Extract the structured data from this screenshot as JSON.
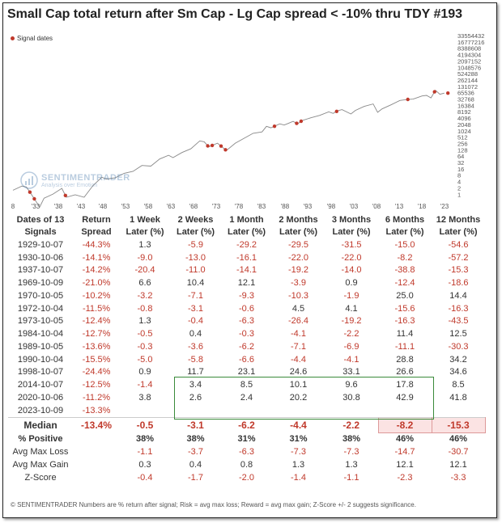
{
  "title": "Small Cap total return after Sm Cap - Lg Cap spread < -10% thru TDY #193",
  "legend": {
    "label": "Signal dates"
  },
  "logo": {
    "name": "SENTIMENTRADER",
    "sub": "Analysis over Emotion"
  },
  "chart_data": {
    "type": "line",
    "yscale": "log2",
    "y_ticks": [
      "33554432",
      "16777216",
      "8388608",
      "4194304",
      "2097152",
      "1048576",
      "524288",
      "262144",
      "131072",
      "65536",
      "32768",
      "16384",
      "8192",
      "4096",
      "2048",
      "1024",
      "512",
      "256",
      "128",
      "64",
      "32",
      "16",
      "8",
      "4",
      "2",
      "1"
    ],
    "x_ticks": [
      "8",
      "'33",
      "'38",
      "'43",
      "'48",
      "'53",
      "'58",
      "'63",
      "'68",
      "'73",
      "'78",
      "'83",
      "'88",
      "'93",
      "'98",
      "'03",
      "'08",
      "'13",
      "'18",
      "'23"
    ],
    "series": [
      {
        "points": [
          [
            1926,
            2.1
          ],
          [
            1928,
            3.3
          ],
          [
            1929,
            3.0
          ],
          [
            1930,
            1.5
          ],
          [
            1932,
            0.35
          ],
          [
            1933,
            0.9
          ],
          [
            1935,
            1.4
          ],
          [
            1937,
            2.6
          ],
          [
            1938,
            1.0
          ],
          [
            1940,
            1.3
          ],
          [
            1942,
            1.0
          ],
          [
            1944,
            3.5
          ],
          [
            1946,
            8.5
          ],
          [
            1947,
            7.0
          ],
          [
            1949,
            8.0
          ],
          [
            1951,
            13
          ],
          [
            1953,
            16
          ],
          [
            1955,
            30
          ],
          [
            1957,
            28
          ],
          [
            1959,
            60
          ],
          [
            1961,
            90
          ],
          [
            1962,
            70
          ],
          [
            1964,
            120
          ],
          [
            1966,
            180
          ],
          [
            1968,
            420
          ],
          [
            1969,
            380
          ],
          [
            1970,
            220
          ],
          [
            1972,
            330
          ],
          [
            1974,
            150
          ],
          [
            1976,
            330
          ],
          [
            1978,
            560
          ],
          [
            1980,
            950
          ],
          [
            1982,
            1100
          ],
          [
            1983,
            2000
          ],
          [
            1984,
            1700
          ],
          [
            1986,
            2600
          ],
          [
            1987,
            2300
          ],
          [
            1988,
            2800
          ],
          [
            1989,
            3400
          ],
          [
            1990,
            2600
          ],
          [
            1991,
            3700
          ],
          [
            1993,
            5000
          ],
          [
            1995,
            6500
          ],
          [
            1997,
            9500
          ],
          [
            1998,
            8000
          ],
          [
            1999,
            10500
          ],
          [
            2000,
            12000
          ],
          [
            2002,
            7500
          ],
          [
            2003,
            11000
          ],
          [
            2005,
            17000
          ],
          [
            2007,
            22000
          ],
          [
            2008,
            9000
          ],
          [
            2009,
            13000
          ],
          [
            2011,
            20000
          ],
          [
            2013,
            32000
          ],
          [
            2014,
            34000
          ],
          [
            2015,
            36000
          ],
          [
            2016,
            37000
          ],
          [
            2018,
            52000
          ],
          [
            2019,
            55000
          ],
          [
            2020,
            42000
          ],
          [
            2021,
            95000
          ],
          [
            2022,
            62000
          ],
          [
            2023,
            70000
          ]
        ]
      }
    ],
    "signals": [
      1929.8,
      1930.8,
      1937.8,
      1969.8,
      1970.8,
      1972.8,
      1973.8,
      1984.8,
      1989.8,
      1990.8,
      1998.8,
      2014.8,
      2020.8,
      2023.8
    ]
  },
  "table": {
    "headers": [
      "Dates of 13 Signals",
      "Return Spread",
      "1 Week Later (%)",
      "2 Weeks Later (%)",
      "1 Month Later (%)",
      "2 Months Later (%)",
      "3 Months Later (%)",
      "6 Months Later (%)",
      "12 Months Later (%)"
    ],
    "rows": [
      [
        "1929-10-07",
        "-44.3%",
        "1.3",
        "-5.9",
        "-29.2",
        "-29.5",
        "-31.5",
        "-15.0",
        "-54.6"
      ],
      [
        "1930-10-06",
        "-14.1%",
        "-9.0",
        "-13.0",
        "-16.1",
        "-22.0",
        "-22.0",
        "-8.2",
        "-57.2"
      ],
      [
        "1937-10-07",
        "-14.2%",
        "-20.4",
        "-11.0",
        "-14.1",
        "-19.2",
        "-14.0",
        "-38.8",
        "-15.3"
      ],
      [
        "1969-10-09",
        "-21.0%",
        "6.6",
        "10.4",
        "12.1",
        "-3.9",
        "0.9",
        "-12.4",
        "-18.6"
      ],
      [
        "1970-10-05",
        "-10.2%",
        "-3.2",
        "-7.1",
        "-9.3",
        "-10.3",
        "-1.9",
        "25.0",
        "14.4"
      ],
      [
        "1972-10-04",
        "-11.5%",
        "-0.8",
        "-3.1",
        "-0.6",
        "4.5",
        "4.1",
        "-15.6",
        "-16.3"
      ],
      [
        "1973-10-05",
        "-12.4%",
        "1.3",
        "-0.4",
        "-6.3",
        "-26.4",
        "-19.2",
        "-16.3",
        "-43.5"
      ],
      [
        "1984-10-04",
        "-12.7%",
        "-0.5",
        "0.4",
        "-0.3",
        "-4.1",
        "-2.2",
        "11.4",
        "12.5"
      ],
      [
        "1989-10-05",
        "-13.6%",
        "-0.3",
        "-3.6",
        "-6.2",
        "-7.1",
        "-6.9",
        "-11.1",
        "-30.3"
      ],
      [
        "1990-10-04",
        "-15.5%",
        "-5.0",
        "-5.8",
        "-6.6",
        "-4.4",
        "-4.1",
        "28.8",
        "34.2"
      ],
      [
        "1998-10-07",
        "-24.4%",
        "0.9",
        "11.7",
        "23.1",
        "24.6",
        "33.1",
        "26.6",
        "34.6"
      ],
      [
        "2014-10-07",
        "-12.5%",
        "-1.4",
        "3.4",
        "8.5",
        "10.1",
        "9.6",
        "17.8",
        "8.5"
      ],
      [
        "2020-10-06",
        "-11.2%",
        "3.8",
        "2.6",
        "2.4",
        "20.2",
        "30.8",
        "42.9",
        "41.8"
      ],
      [
        "2023-10-09",
        "-13.3%",
        "",
        "",
        "",
        "",
        "",
        "",
        ""
      ]
    ],
    "median": [
      "Median",
      "-13.4%",
      "-0.5",
      "-3.1",
      "-6.2",
      "-4.4",
      "-2.2",
      "-8.2",
      "-15.3"
    ],
    "positive": [
      "% Positive",
      "",
      "38%",
      "38%",
      "31%",
      "31%",
      "38%",
      "46%",
      "46%"
    ],
    "avg_max_loss": [
      "Avg Max Loss",
      "",
      "-1.1",
      "-3.7",
      "-6.3",
      "-7.3",
      "-7.3",
      "-14.7",
      "-30.7"
    ],
    "avg_max_gain": [
      "Avg Max Gain",
      "",
      "0.3",
      "0.4",
      "0.8",
      "1.3",
      "1.3",
      "12.1",
      "12.1"
    ],
    "z_score": [
      "Z-Score",
      "",
      "-0.4",
      "-1.7",
      "-2.0",
      "-1.4",
      "-1.1",
      "-2.3",
      "-3.3"
    ]
  },
  "footer": "© SENTIMENTRADER  Numbers are % return after signal; Risk = avg max loss; Reward = avg max gain; Z-Score +/- 2 suggests significance."
}
